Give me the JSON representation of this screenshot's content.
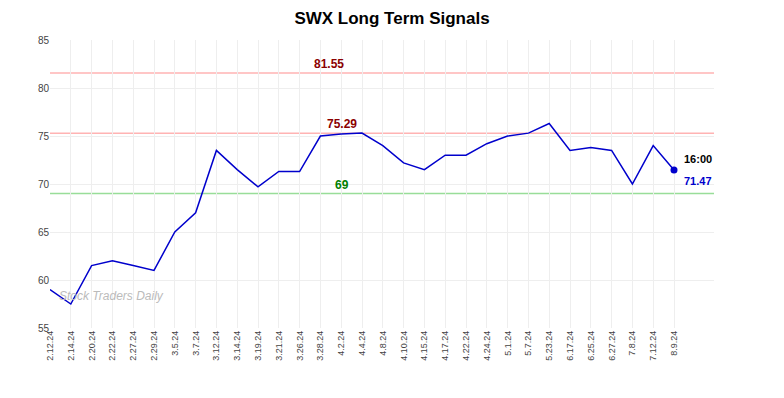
{
  "chart_data": {
    "type": "line",
    "title": "SWX Long Term Signals",
    "categories": [
      "2.12.24",
      "2.14.24",
      "2.20.24",
      "2.22.24",
      "2.27.24",
      "2.29.24",
      "3.5.24",
      "3.7.24",
      "3.12.24",
      "3.14.24",
      "3.19.24",
      "3.21.24",
      "3.26.24",
      "3.28.24",
      "4.2.24",
      "4.4.24",
      "4.8.24",
      "4.10.24",
      "4.15.24",
      "4.17.24",
      "4.22.24",
      "4.24.24",
      "5.1.24",
      "5.7.24",
      "5.23.24",
      "6.17.24",
      "6.25.24",
      "6.27.24",
      "7.8.24",
      "7.12.24",
      "8.9.24"
    ],
    "values": [
      59.0,
      57.5,
      61.5,
      62.0,
      61.5,
      61.0,
      65.0,
      67.0,
      73.5,
      71.5,
      69.7,
      71.3,
      71.3,
      75.0,
      75.2,
      75.3,
      74.0,
      72.2,
      71.5,
      73.0,
      73.0,
      74.2,
      75.0,
      75.3,
      76.3,
      73.5,
      73.8,
      73.5,
      70.0,
      74.0,
      71.47
    ],
    "color": "#0000cc",
    "ylim": [
      55,
      85
    ],
    "yticks": [
      55,
      60,
      65,
      70,
      75,
      80,
      85
    ],
    "grid": true,
    "hlines": [
      {
        "value": 81.55,
        "label": "81.55",
        "color": "#ffb3b3",
        "label_color": "darkred"
      },
      {
        "value": 75.29,
        "label": "75.29",
        "color": "#ffb3b3",
        "label_color": "darkred"
      },
      {
        "value": 69.0,
        "label": "69",
        "color": "#99dd99",
        "label_color": "green"
      }
    ],
    "last_point": {
      "label": "16:00",
      "value": 71.47
    },
    "watermark": "Stock Traders Daily"
  }
}
